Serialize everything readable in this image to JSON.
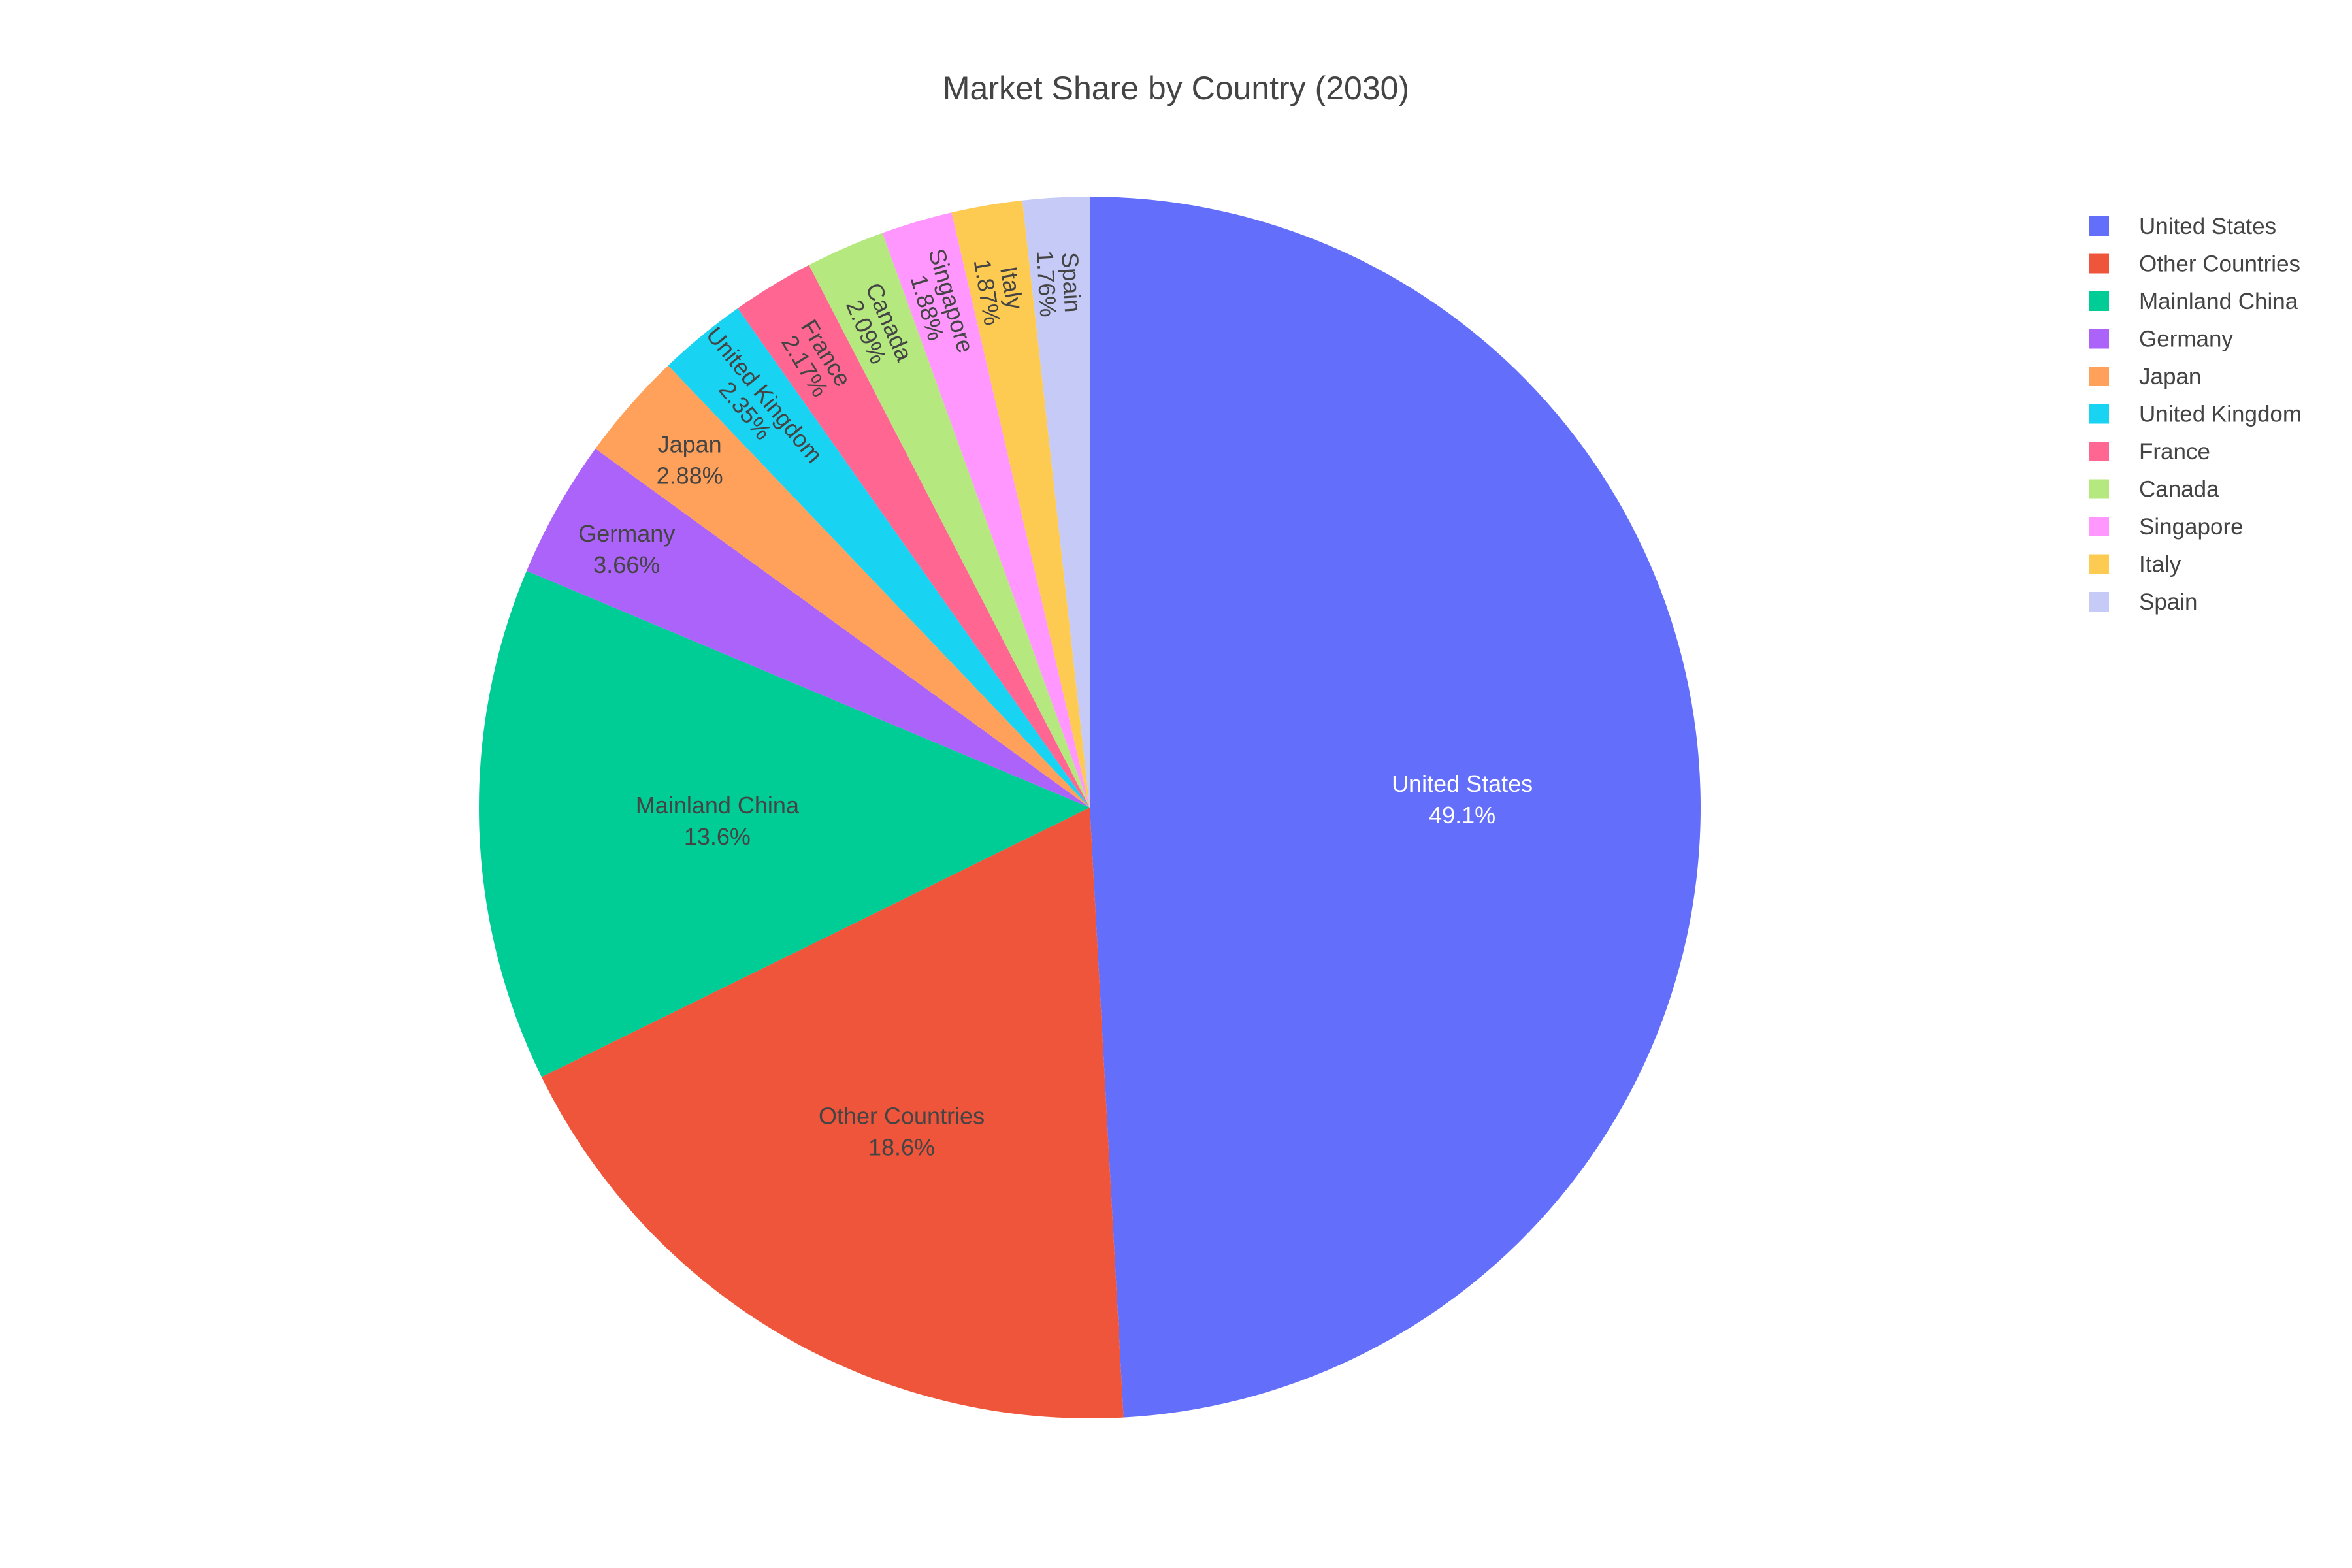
{
  "chart_data": {
    "type": "pie",
    "title": "Market Share by Country (2030)",
    "labels": [
      "United States",
      "Other Countries",
      "Mainland China",
      "Germany",
      "Japan",
      "United Kingdom",
      "France",
      "Canada",
      "Singapore",
      "Italy",
      "Spain"
    ],
    "values": [
      49.1,
      18.6,
      13.6,
      3.66,
      2.88,
      2.35,
      2.17,
      2.09,
      1.88,
      1.87,
      1.76
    ],
    "value_labels": [
      "49.1%",
      "18.6%",
      "13.6%",
      "3.66%",
      "2.88%",
      "2.35%",
      "2.17%",
      "2.09%",
      "1.88%",
      "1.87%",
      "1.76%"
    ],
    "colors": [
      "#636efa",
      "#ef553b",
      "#00cc96",
      "#ab63fa",
      "#ffa15a",
      "#19d3f3",
      "#ff6692",
      "#b6e880",
      "#ff97ff",
      "#fecb52",
      "#c6caf7"
    ],
    "label_colors": [
      "#ffffff",
      "#444444",
      "#444444",
      "#444444",
      "#444444",
      "#444444",
      "#444444",
      "#444444",
      "#444444",
      "#444444",
      "#444444"
    ],
    "start_angle": "top",
    "direction": "clockwise",
    "legend_placement": "top-right"
  }
}
